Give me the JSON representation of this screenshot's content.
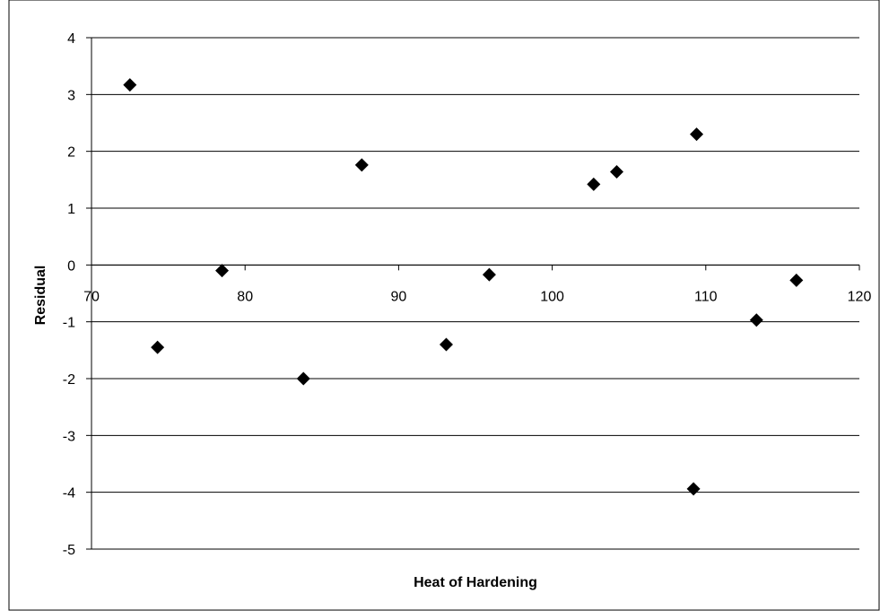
{
  "chart_data": {
    "type": "scatter",
    "title": "",
    "xlabel": "Heat of Hardening",
    "ylabel": "Residual",
    "xlim": [
      70,
      120
    ],
    "ylim": [
      -5,
      4
    ],
    "xticks": [
      70,
      80,
      90,
      100,
      110,
      120
    ],
    "yticks": [
      -5,
      -4,
      -3,
      -2,
      -1,
      0,
      1,
      2,
      3,
      4
    ],
    "grid": "horizontal",
    "legend": "none",
    "marker": "diamond",
    "colors": {
      "marker": "#000000",
      "grid": "#000000",
      "background": "#ffffff"
    },
    "points": [
      {
        "x": 72.5,
        "y": 3.17
      },
      {
        "x": 74.3,
        "y": -1.45
      },
      {
        "x": 78.5,
        "y": -0.1
      },
      {
        "x": 83.8,
        "y": -2.0
      },
      {
        "x": 87.6,
        "y": 1.76
      },
      {
        "x": 93.1,
        "y": -1.4
      },
      {
        "x": 95.9,
        "y": -0.17
      },
      {
        "x": 102.7,
        "y": 1.42
      },
      {
        "x": 104.2,
        "y": 1.64
      },
      {
        "x": 109.2,
        "y": -3.94
      },
      {
        "x": 109.4,
        "y": 2.3
      },
      {
        "x": 113.3,
        "y": -0.97
      },
      {
        "x": 115.9,
        "y": -0.27
      }
    ]
  }
}
